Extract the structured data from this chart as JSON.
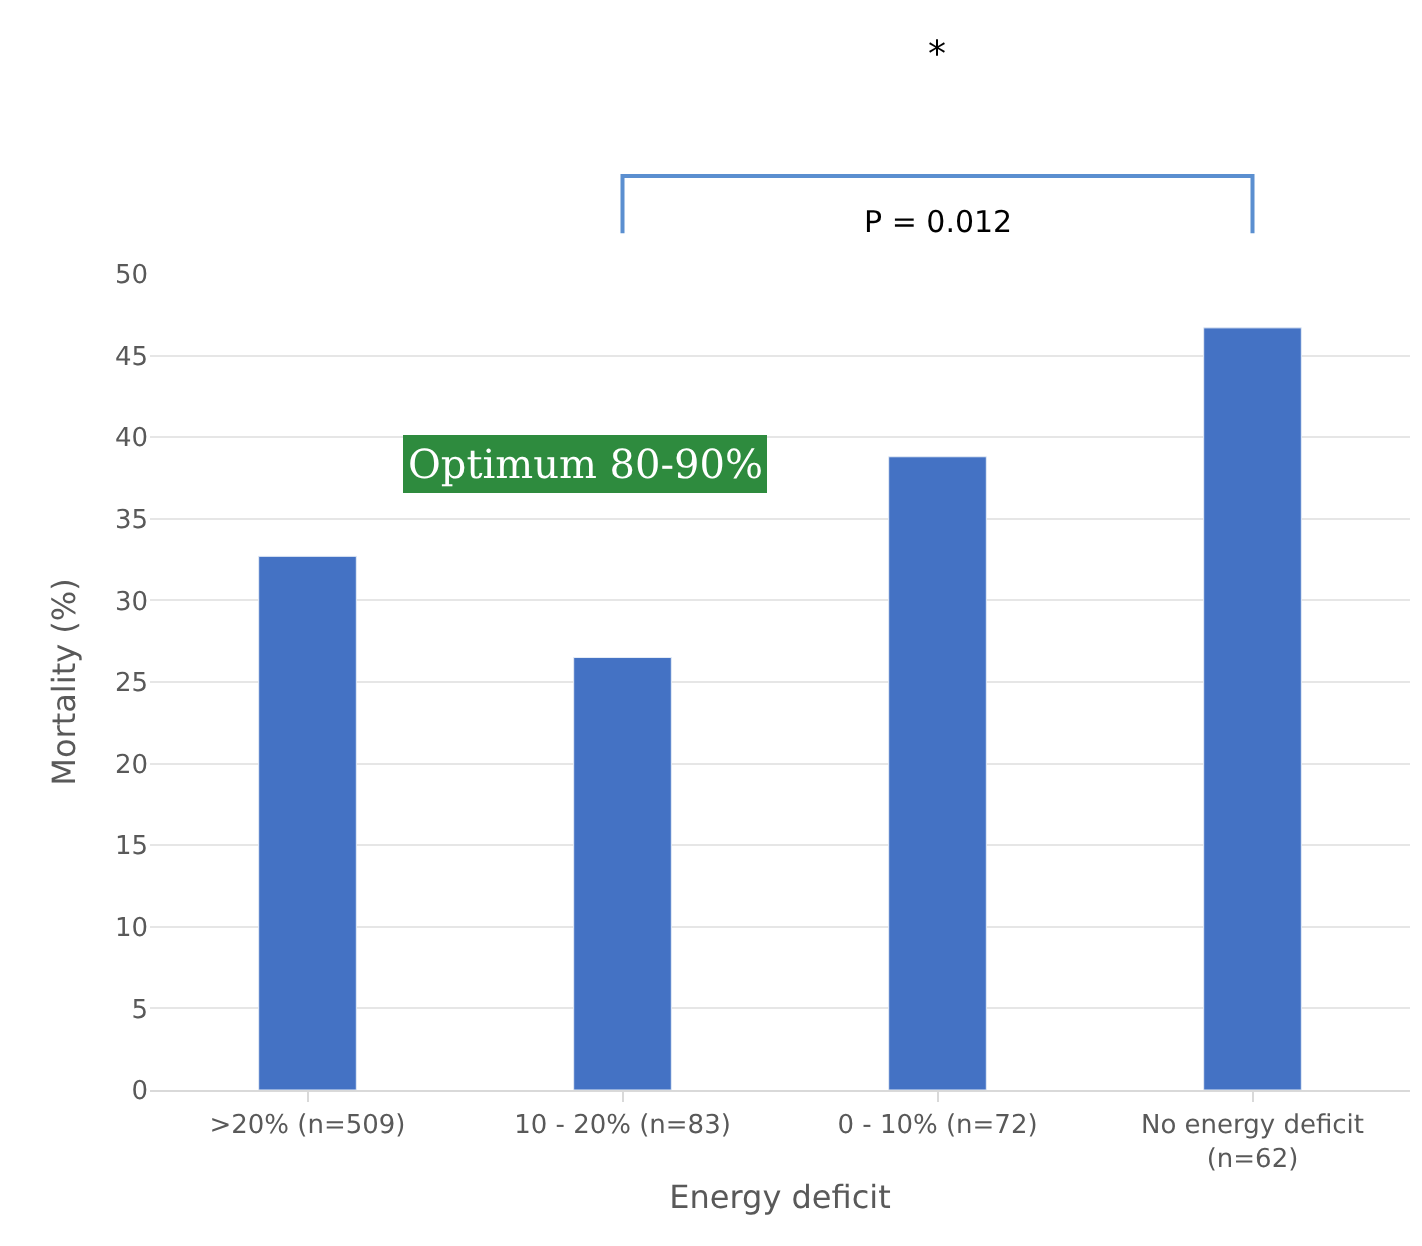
{
  "chart_data": {
    "type": "bar",
    "xlabel": "Energy deficit",
    "ylabel": "Mortality (%)",
    "categories": [
      ">20% (n=509)",
      "10 - 20% (n=83)",
      "0 - 10% (n=72)",
      "No energy deficit\n(n=62)"
    ],
    "values": [
      32.7,
      26.5,
      38.8,
      46.7
    ],
    "color": "#4472c4",
    "ylim": [
      0,
      50
    ],
    "yticks": [
      0,
      5,
      10,
      15,
      20,
      25,
      30,
      35,
      40,
      45,
      50
    ],
    "grid": "y",
    "annotations": [
      "*",
      "P = 0.012",
      "Optimum 80-90%"
    ]
  }
}
